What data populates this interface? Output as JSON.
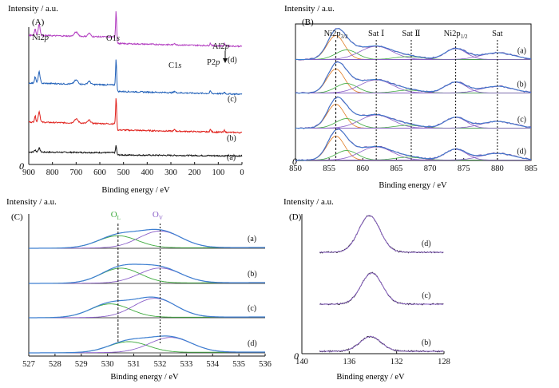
{
  "colors": {
    "black": "#111111",
    "red": "#e0201b",
    "blue": "#1f5fb8",
    "magenta": "#b23cc0",
    "fit": "#3d7fd1",
    "comp_green": "#3daa3d",
    "comp_purple": "#8a5fc8",
    "comp_orange": "#e07a20",
    "meas": "#6a4fa8",
    "axis": "#111111"
  },
  "chart_data": [
    {
      "panel": "(A)",
      "type": "line",
      "ylabel": "Intensity / a.u.",
      "xlabel": "Binding energy / eV",
      "xlim": [
        900,
        0
      ],
      "xticks": [
        "900",
        "800",
        "700",
        "600",
        "500",
        "400",
        "300",
        "200",
        "100",
        "0"
      ],
      "yzero": "0",
      "peak_labels": [
        "Ni2p",
        "O1s",
        "C1s",
        "P2p",
        "Al2p"
      ],
      "curve_labels": [
        "(a)",
        "(b)",
        "(c)",
        "(d)"
      ],
      "series": [
        {
          "name": "(a)",
          "peaks_eV": [
            855,
            531
          ]
        },
        {
          "name": "(b)",
          "peaks_eV": [
            855,
            531,
            284,
            133,
            74
          ]
        },
        {
          "name": "(c)",
          "peaks_eV": [
            855,
            531,
            284,
            133,
            74
          ]
        },
        {
          "name": "(d)",
          "peaks_eV": [
            855,
            531,
            284,
            133,
            74
          ]
        }
      ]
    },
    {
      "panel": "(B)",
      "type": "line",
      "ylabel": "Intensity / a.u.",
      "xlabel": "Binding energy / eV",
      "xlim": [
        850,
        885
      ],
      "xticks": [
        "850",
        "855",
        "860",
        "865",
        "870",
        "875",
        "880",
        "885"
      ],
      "yzero": "0",
      "peak_labels": [
        {
          "text": "Ni2p",
          "sub": "3/2",
          "x": 856.0
        },
        {
          "text": "Sat Ⅰ",
          "sub": "",
          "x": 862.0
        },
        {
          "text": "Sat Ⅱ",
          "sub": "",
          "x": 867.2
        },
        {
          "text": "Ni2p",
          "sub": "1/2",
          "x": 873.8
        },
        {
          "text": "Sat",
          "sub": "",
          "x": 880.0
        }
      ],
      "curve_labels": [
        "(a)",
        "(b)",
        "(c)",
        "(d)"
      ],
      "components_eV": [
        856.0,
        862.0,
        867.2,
        873.8,
        880.0
      ]
    },
    {
      "panel": "(C)",
      "type": "line",
      "ylabel": "Intensity / a.u.",
      "xlabel": "Binding energy / eV",
      "xlim": [
        527,
        536
      ],
      "xticks": [
        "527",
        "528",
        "529",
        "530",
        "531",
        "532",
        "533",
        "534",
        "535",
        "536"
      ],
      "peak_labels": [
        {
          "text": "O",
          "sub": "L",
          "x": 530.4
        },
        {
          "text": "O",
          "sub": "V",
          "x": 532.0
        }
      ],
      "curve_labels": [
        "(a)",
        "(b)",
        "(c)",
        "(d)"
      ],
      "series": [
        {
          "name": "(a)",
          "OL_center": 530.4,
          "OV_center": 532.0,
          "OL_amp": 0.45,
          "OV_amp": 0.62
        },
        {
          "name": "(b)",
          "OL_center": 530.5,
          "OV_center": 532.0,
          "OL_amp": 0.55,
          "OV_amp": 0.55
        },
        {
          "name": "(c)",
          "OL_center": 530.1,
          "OV_center": 531.8,
          "OL_amp": 0.5,
          "OV_amp": 0.7
        },
        {
          "name": "(d)",
          "OL_center": 530.8,
          "OV_center": 532.4,
          "OL_amp": 0.4,
          "OV_amp": 0.55
        }
      ]
    },
    {
      "panel": "(D)",
      "type": "line",
      "ylabel": "Intensity / a.u.",
      "xlabel": "Binding energy / eV",
      "xlim": [
        140,
        128
      ],
      "xticks": [
        "140",
        "136",
        "132",
        "128"
      ],
      "yzero": "0",
      "curve_labels": [
        "(d)",
        "(c)",
        "(b)"
      ],
      "series": [
        {
          "name": "(d)",
          "center_eV": 134.3,
          "amp": 1.0
        },
        {
          "name": "(c)",
          "center_eV": 134.1,
          "amp": 0.85
        },
        {
          "name": "(b)",
          "center_eV": 134.2,
          "amp": 0.4
        }
      ]
    }
  ]
}
